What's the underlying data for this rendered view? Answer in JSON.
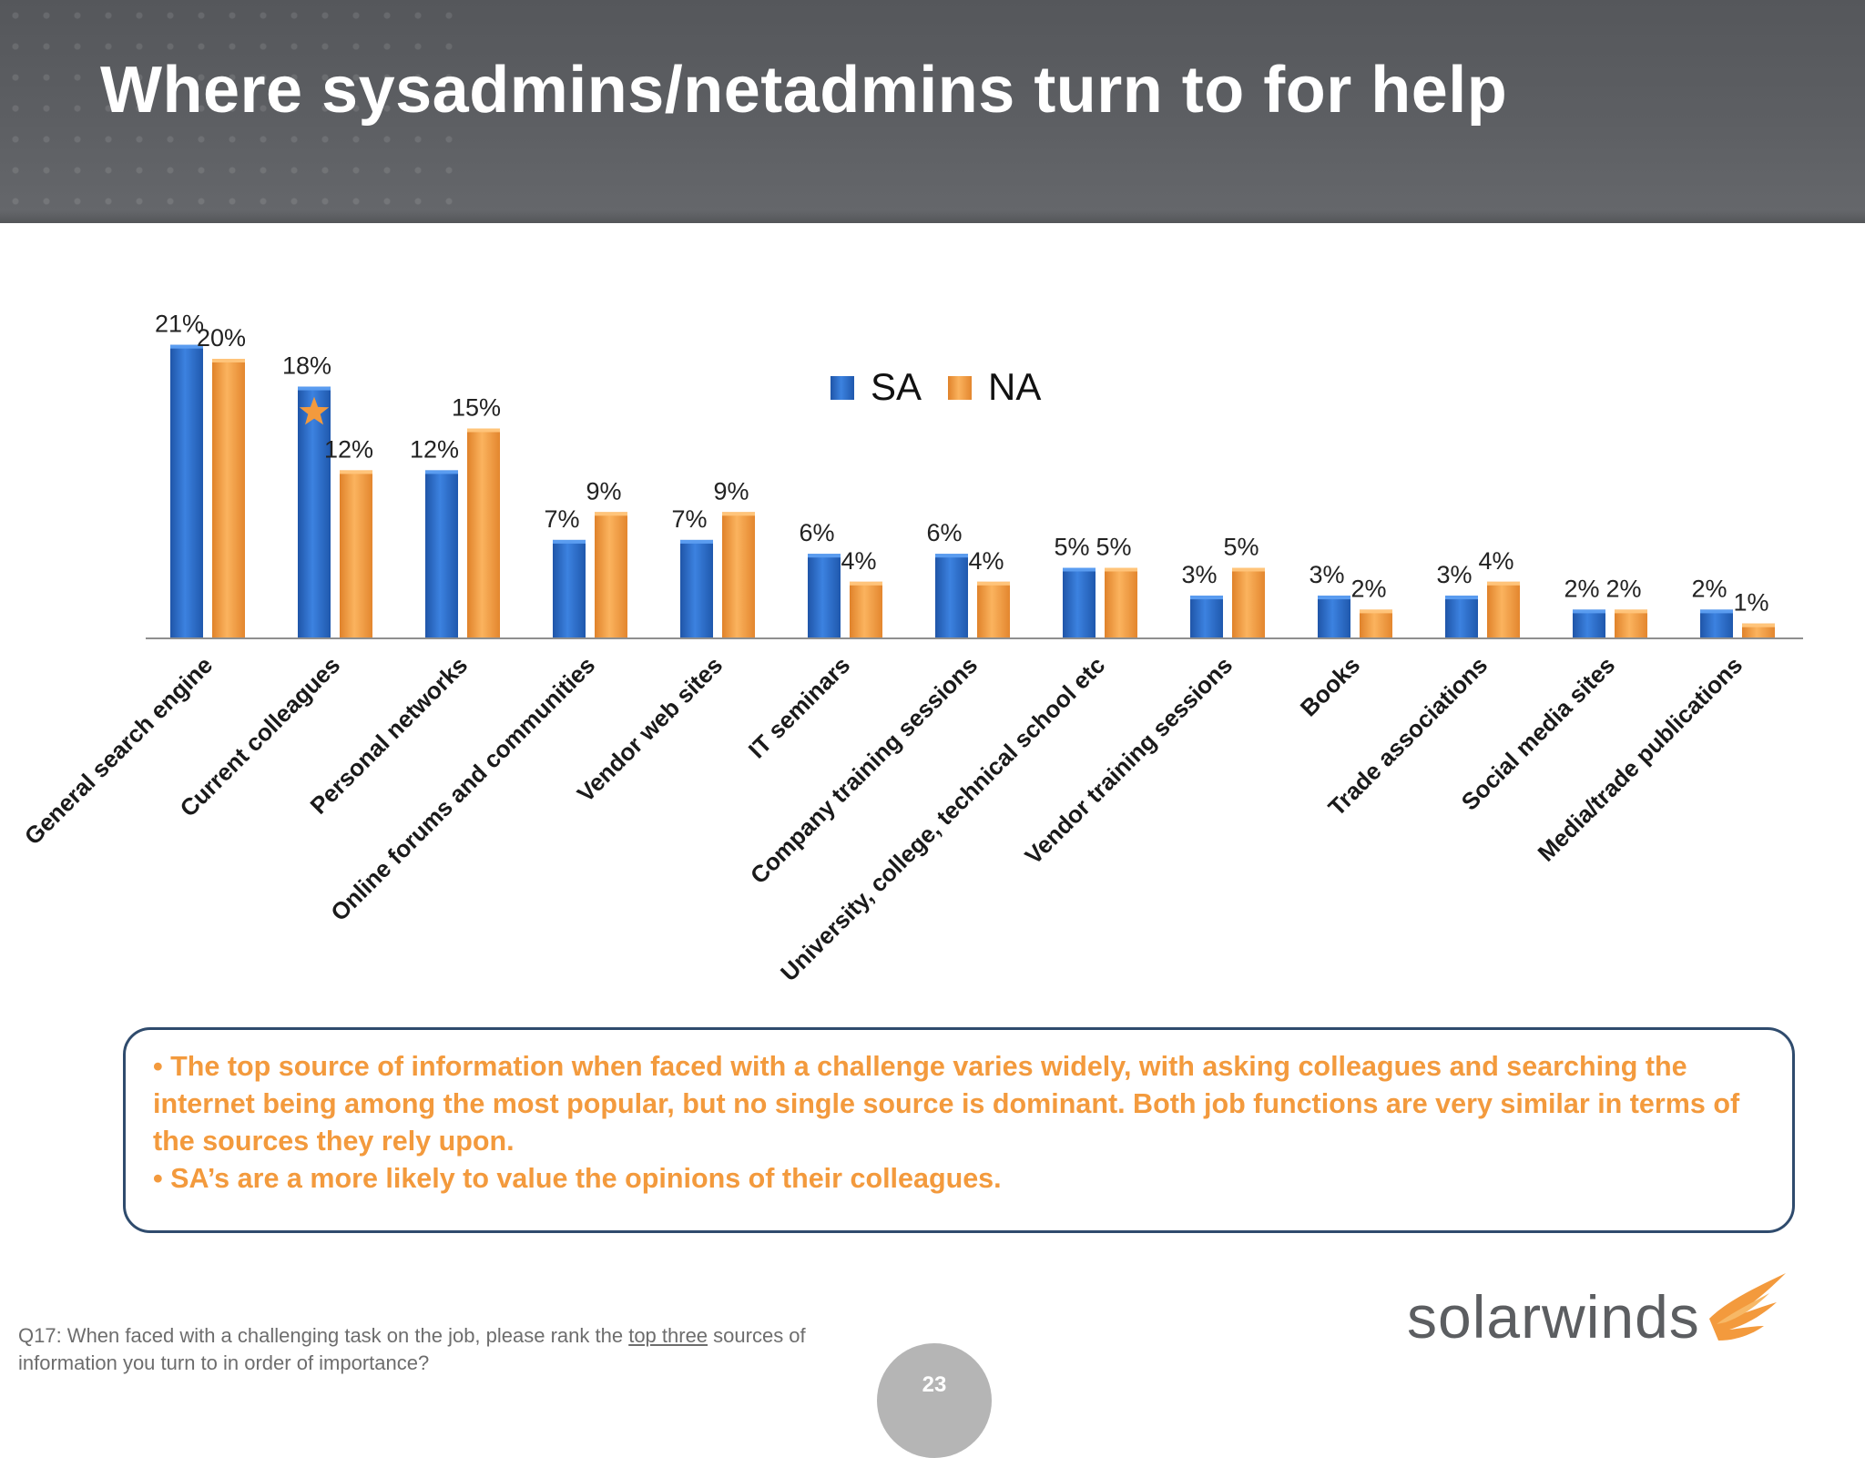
{
  "title": "Where sysadmins/netadmins turn to for help",
  "colors": {
    "sa": "#2f6fce",
    "na": "#f39a3d",
    "callout_text": "#f39a3d",
    "callout_border": "#2f4b6d"
  },
  "chart_data": {
    "type": "bar",
    "title": "",
    "xlabel": "",
    "ylabel": "",
    "ylim": [
      0,
      22
    ],
    "grid": false,
    "legend": "top-center",
    "categories": [
      "General search engine",
      "Current colleagues",
      "Personal networks",
      "Online forums and communities",
      "Vendor web sites",
      "IT seminars",
      "Company training sessions",
      "University, college, technical school etc",
      "Vendor training sessions",
      "Books",
      "Trade associations",
      "Social media sites",
      "Media/trade publications"
    ],
    "series": [
      {
        "name": "SA",
        "values": [
          21,
          18,
          12,
          7,
          7,
          6,
          6,
          5,
          3,
          3,
          3,
          2,
          2
        ],
        "labels": [
          "21%",
          "18%",
          "12%",
          "7%",
          "7%",
          "6%",
          "6%",
          "5%",
          "3%",
          "3%",
          "3%",
          "2%",
          "2%"
        ]
      },
      {
        "name": "NA",
        "values": [
          20,
          12,
          15,
          9,
          9,
          4,
          4,
          5,
          5,
          2,
          4,
          2,
          1
        ],
        "labels": [
          "20%",
          "12%",
          "15%",
          "9%",
          "9%",
          "4%",
          "4%",
          "5%",
          "5%",
          "2%",
          "4%",
          "2%",
          "1%"
        ]
      }
    ],
    "annotations": [
      {
        "type": "star-icon",
        "category": "Current colleagues",
        "series": "SA"
      }
    ]
  },
  "callout": {
    "bullet1": "• The top source of information when faced with a challenge varies widely, with asking colleagues and searching the internet being among the most popular, but no single source is dominant.   Both job functions are very similar in terms of the sources they rely upon.",
    "bullet2": "• SA’s are a more likely to value the opinions of their colleagues."
  },
  "footnote": {
    "before": "Q17: When faced with a challenging task on the job, please rank the ",
    "underlined": "top three",
    "after": " sources of information you turn to in order of importance?"
  },
  "page_number": "23",
  "logo": {
    "text": "solarwinds",
    "icon": "flame-icon"
  }
}
